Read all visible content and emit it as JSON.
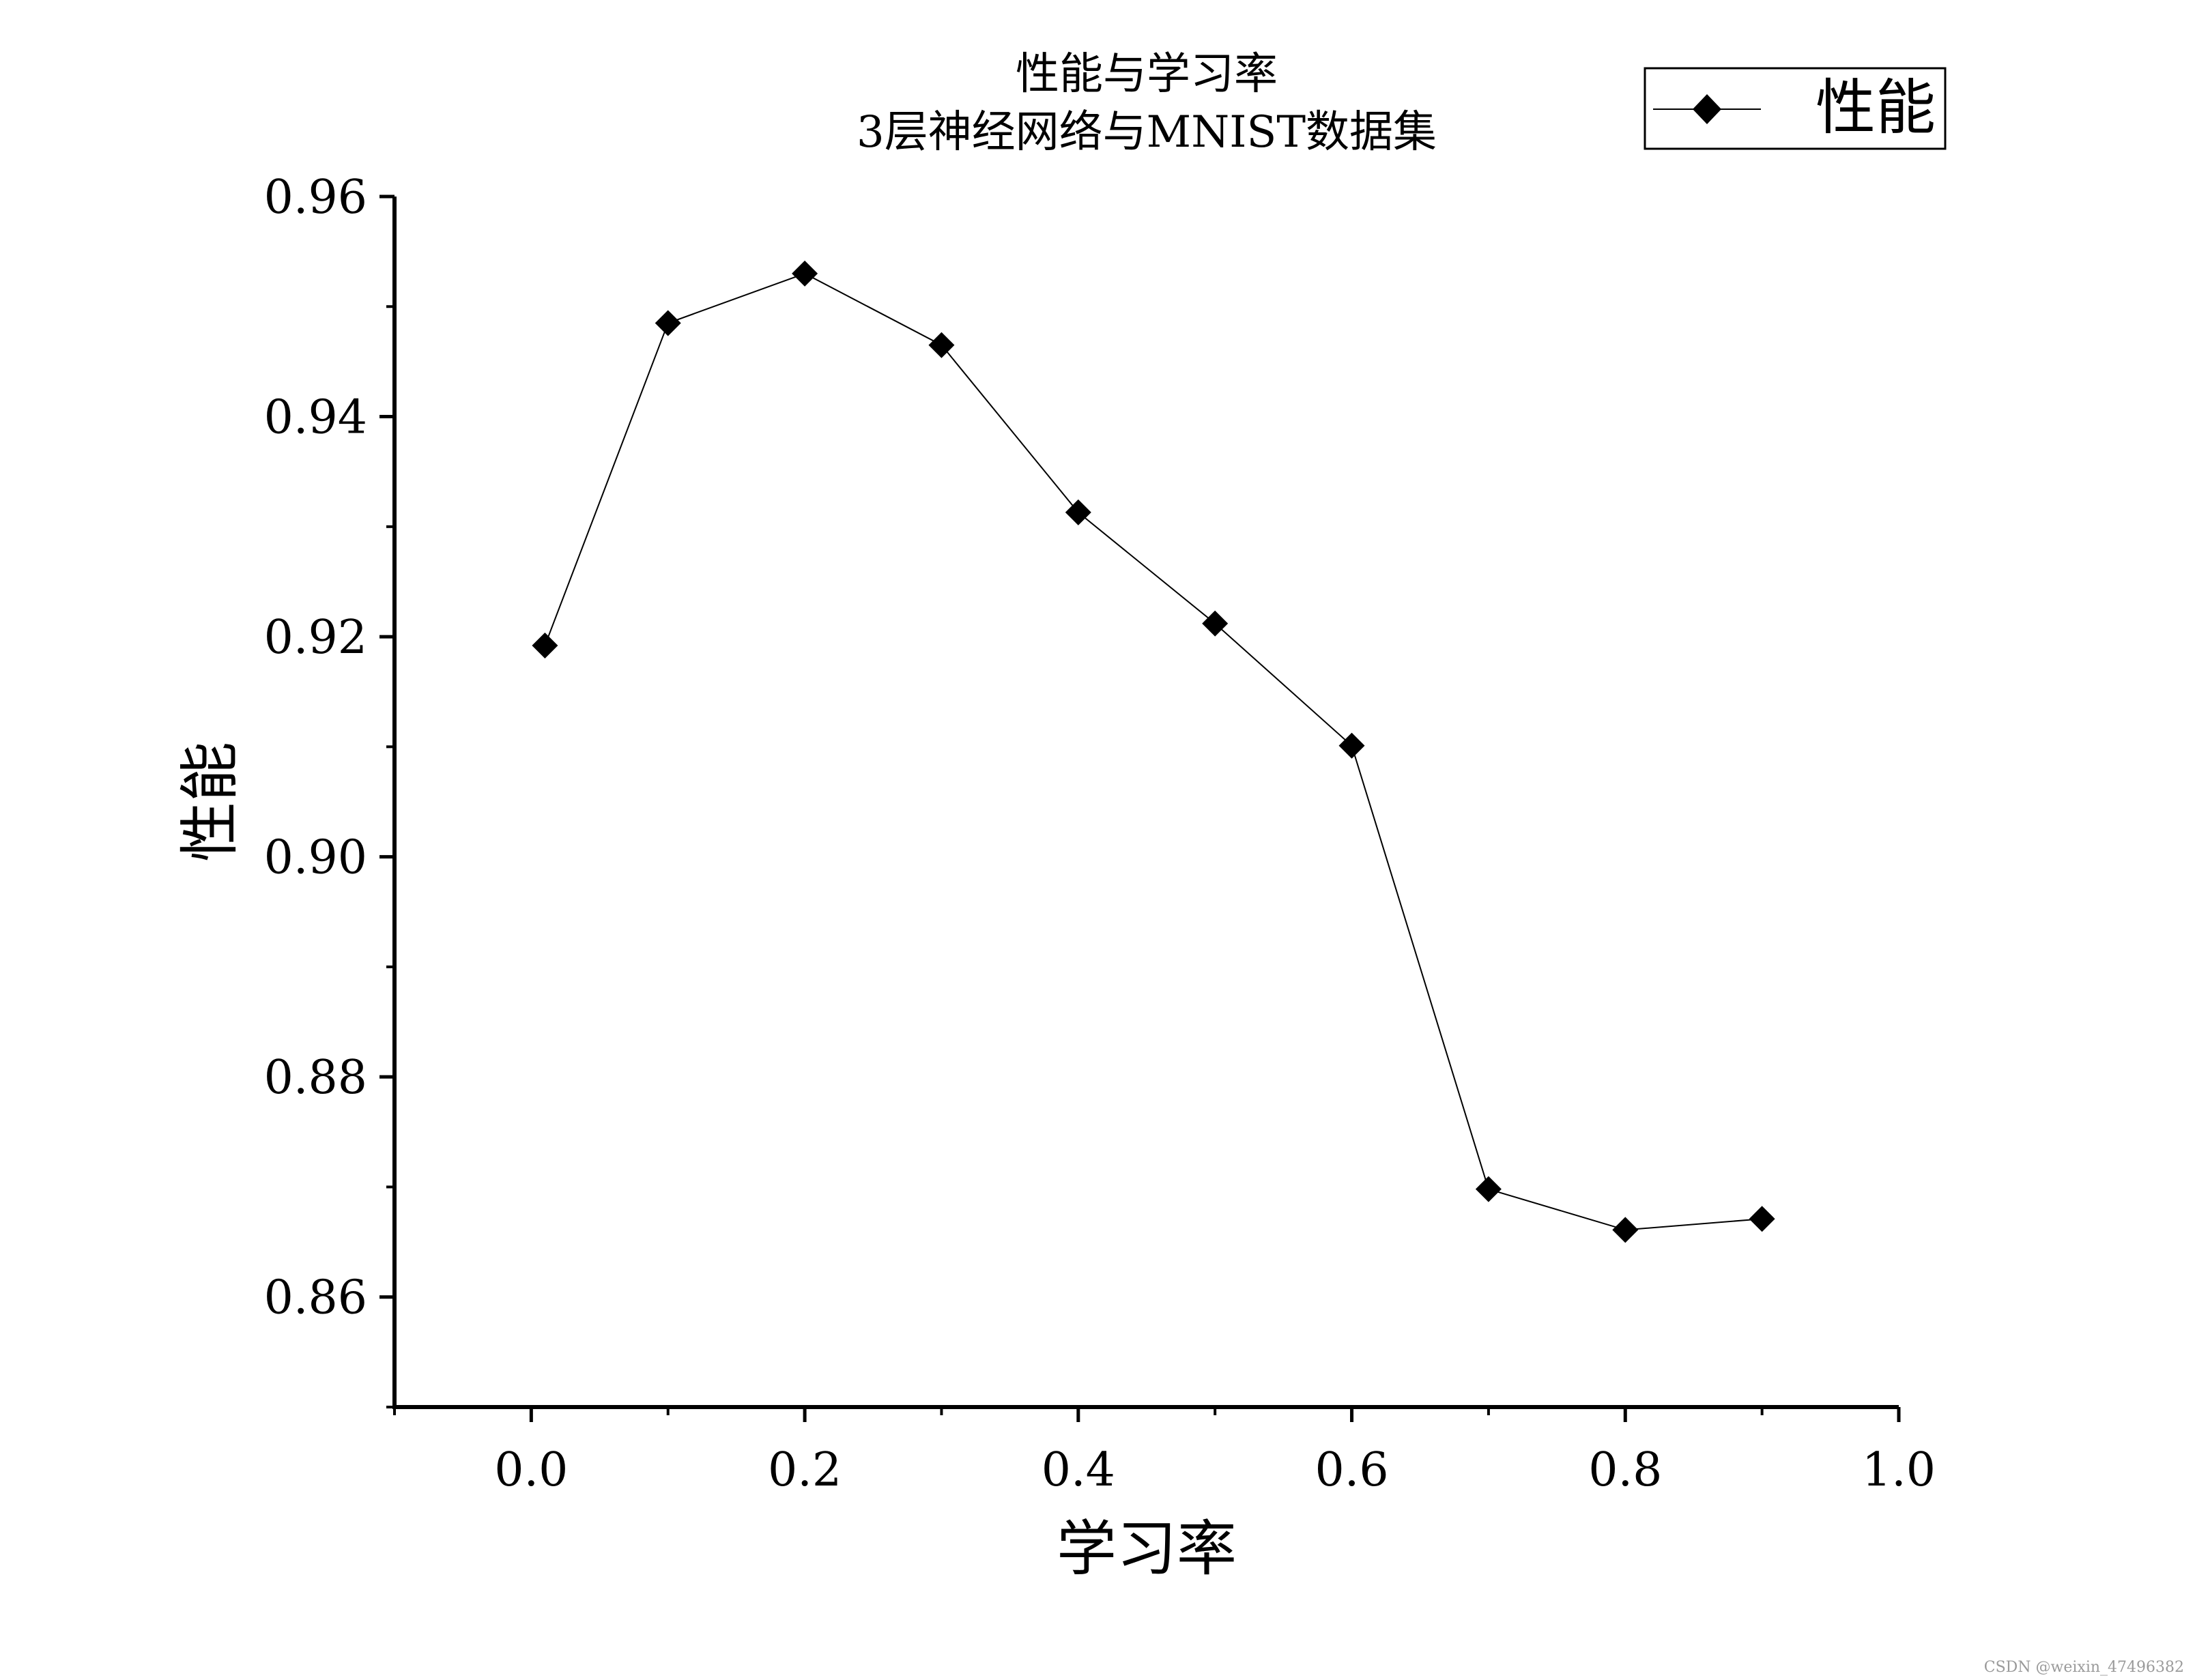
{
  "chart_data": {
    "type": "line",
    "title": [
      "性能与学习率",
      "3层神经网络与MNIST数据集"
    ],
    "xlabel": "学习率",
    "ylabel": "性能",
    "xlim": [
      -0.1,
      1.0
    ],
    "ylim": [
      0.85,
      0.96
    ],
    "x_ticks": [
      "0.0",
      "0.2",
      "0.4",
      "0.6",
      "0.8",
      "1.0"
    ],
    "y_ticks": [
      "0.86",
      "0.88",
      "0.90",
      "0.92",
      "0.94",
      "0.96"
    ],
    "grid": false,
    "legend_position": "top-right",
    "series": [
      {
        "name": "性能",
        "marker": "diamond",
        "color": "#000000",
        "x": [
          0.01,
          0.1,
          0.2,
          0.3,
          0.4,
          0.5,
          0.6,
          0.7,
          0.8,
          0.9
        ],
        "y": [
          0.9192,
          0.9485,
          0.953,
          0.9465,
          0.9313,
          0.9212,
          0.9101,
          0.8698,
          0.8661,
          0.8671
        ]
      }
    ]
  },
  "watermark": "CSDN @weixin_47496382"
}
